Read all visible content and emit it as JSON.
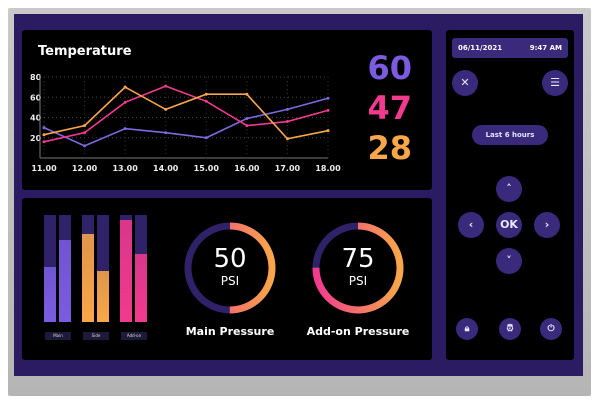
{
  "colors": {
    "purple": "#7b5ce0",
    "pink": "#f23a8e",
    "orange": "#f9a748",
    "track": "#2f2268"
  },
  "temperature": {
    "title": "Temperature",
    "current": {
      "purple": "60",
      "pink": "47",
      "orange": "28"
    },
    "chart_data": {
      "type": "line",
      "x": [
        "11.00",
        "12.00",
        "13.00",
        "14.00",
        "15.00",
        "16.00",
        "17.00",
        "18.00"
      ],
      "yticks": [
        "20",
        "40",
        "60",
        "80"
      ],
      "ylim": [
        0,
        80
      ],
      "grid": true,
      "series": [
        {
          "color": "#7b6be0",
          "values": [
            30,
            12,
            29,
            25,
            20,
            39,
            48,
            59
          ]
        },
        {
          "color": "#f23a8e",
          "values": [
            16,
            25,
            55,
            71,
            56,
            32,
            36,
            47
          ]
        },
        {
          "color": "#f9a748",
          "values": [
            23,
            32,
            70,
            48,
            63,
            63,
            19,
            27
          ]
        }
      ]
    }
  },
  "levels": {
    "groups": [
      {
        "label": "Main",
        "values": [
          51,
          77
        ],
        "color": "#7b5ce0"
      },
      {
        "label": "Side",
        "values": [
          82,
          48
        ],
        "color": "#f9a748"
      },
      {
        "label": "Add-on",
        "values": [
          95,
          64
        ],
        "color": "#f23a8e"
      }
    ]
  },
  "gauges": [
    {
      "value": "50",
      "unit": "PSI",
      "label": "Main Pressure",
      "fraction": 0.5
    },
    {
      "value": "75",
      "unit": "PSI",
      "label": "Add-on Pressure",
      "fraction": 0.75
    }
  ],
  "control": {
    "date": "06/11/2021",
    "time": "9:47 AM",
    "range": "Last 6 hours",
    "ok": "OK",
    "icons": [
      "close-icon",
      "menu-icon",
      "chevron-up-icon",
      "chevron-left-icon",
      "chevron-right-icon",
      "chevron-down-icon",
      "lock-icon",
      "alarm-icon",
      "power-icon"
    ]
  }
}
